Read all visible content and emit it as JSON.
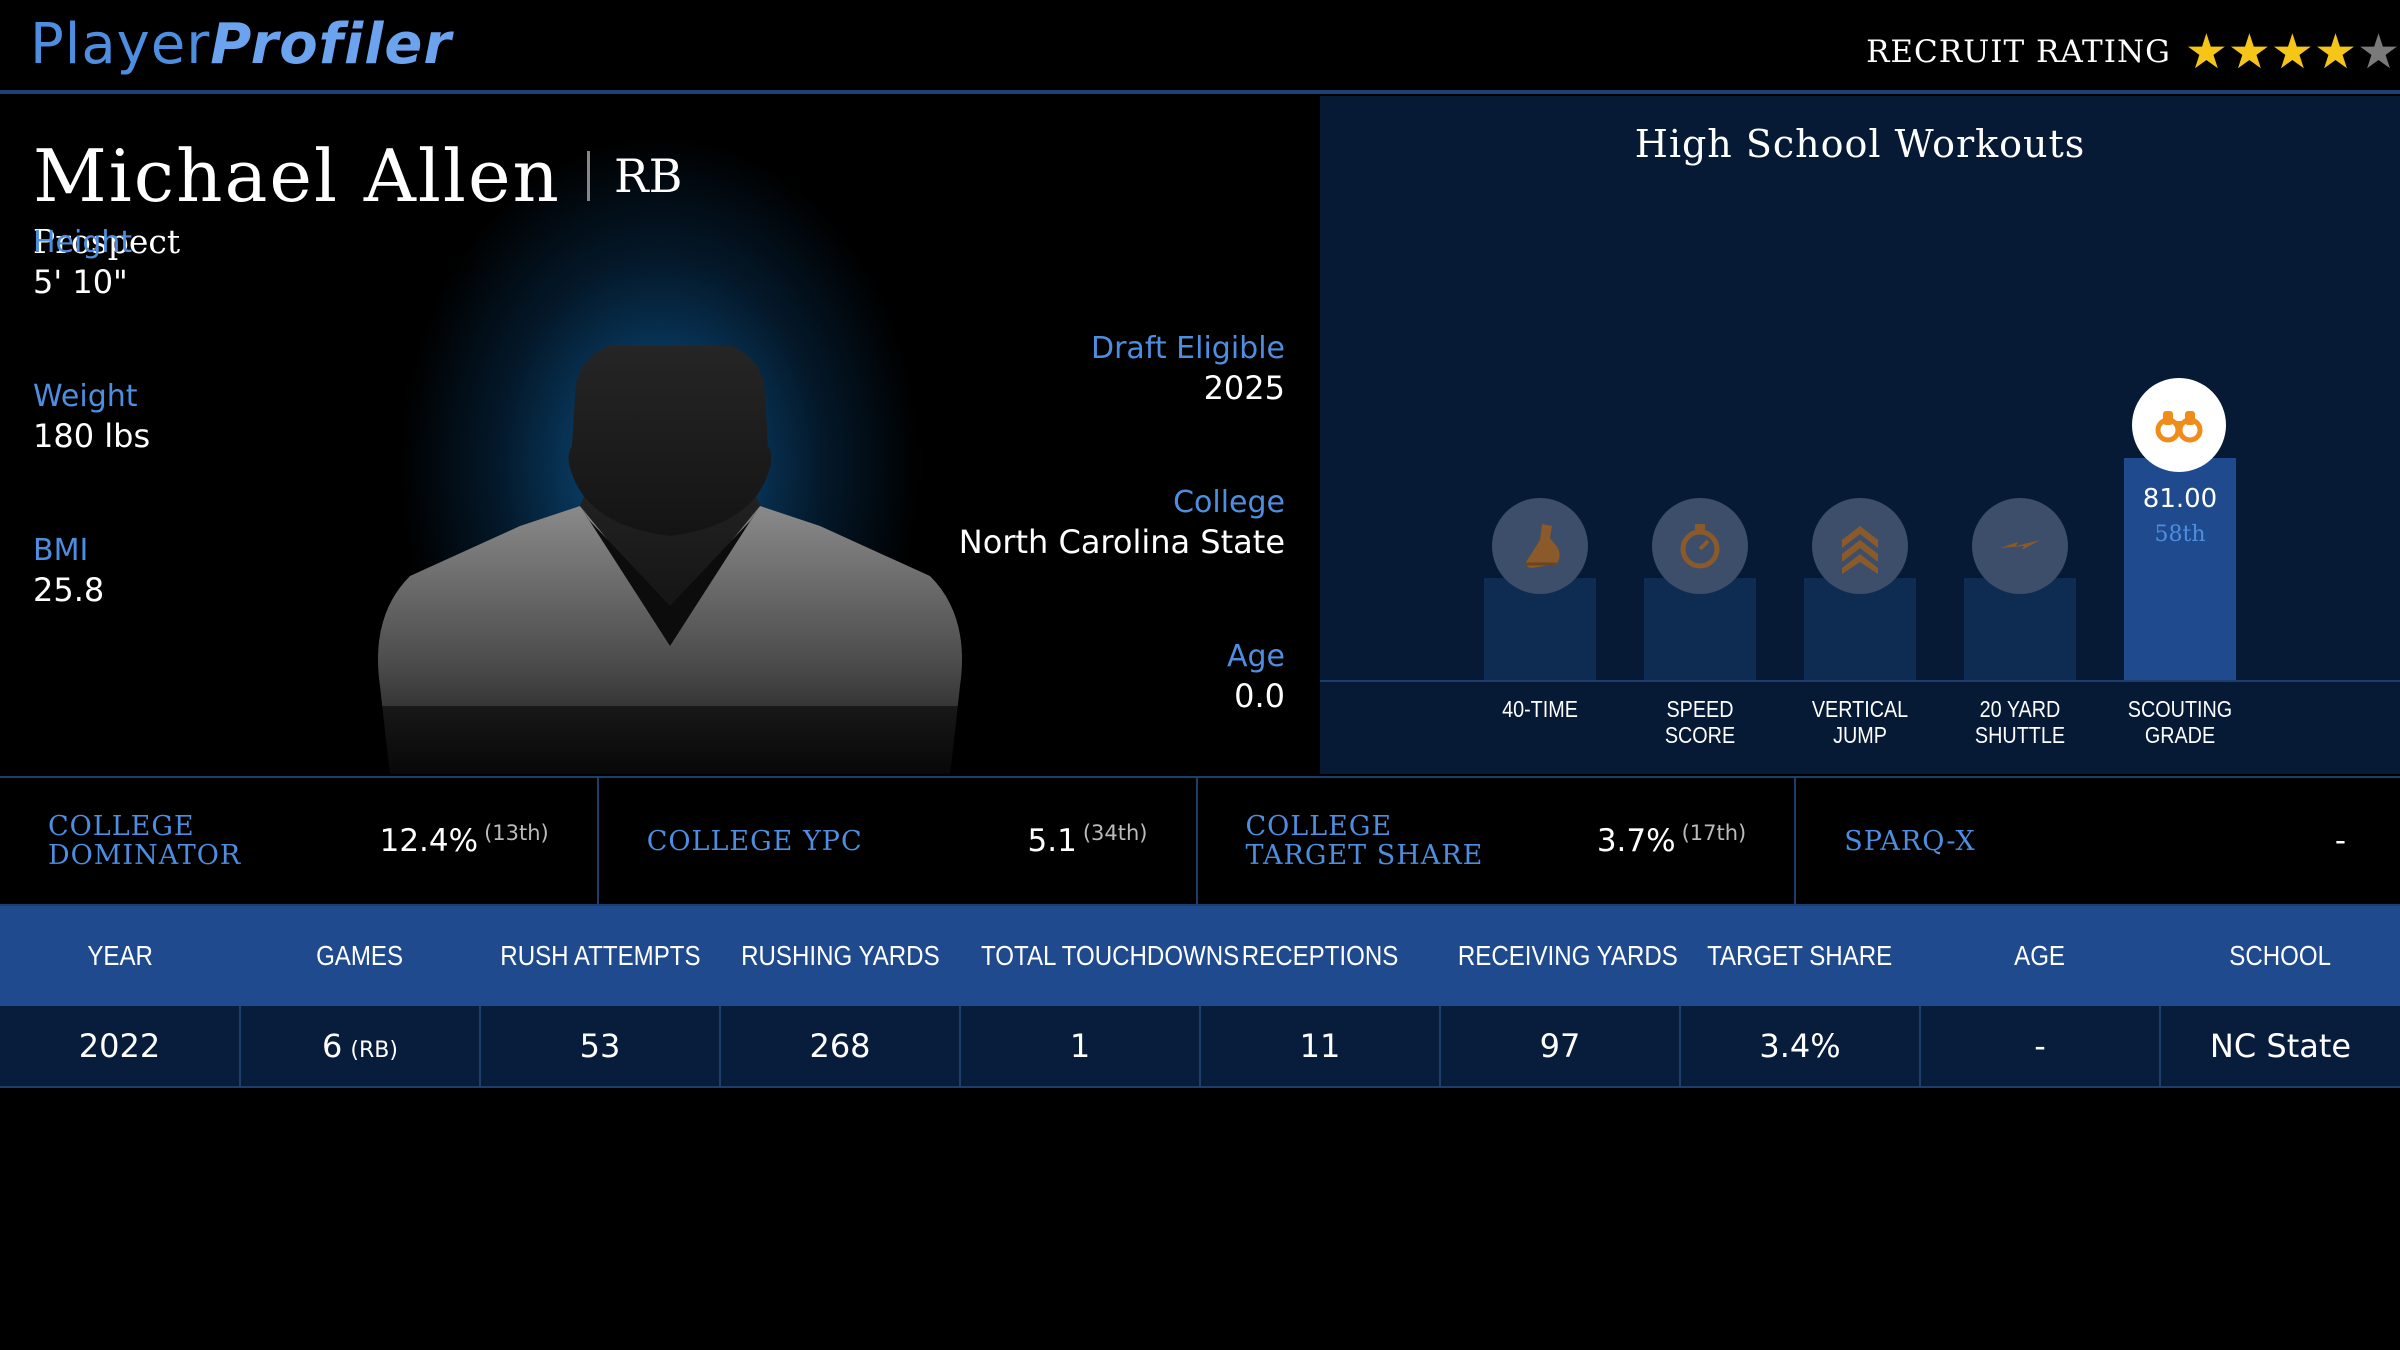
{
  "header": {
    "logo_part1": "Player",
    "logo_part2": "Profiler",
    "recruit_label": "RECRUIT RATING",
    "recruit_stars": 4,
    "recruit_stars_max": 5,
    "star_color": "#f5c518"
  },
  "player": {
    "name": "Michael Allen",
    "position": "RB",
    "status": "Prospect",
    "height_label": "Height",
    "height": "5' 10\"",
    "weight_label": "Weight",
    "weight": "180 lbs",
    "bmi_label": "BMI",
    "bmi": "25.8",
    "draft_label": "Draft Eligible",
    "draft": "2025",
    "college_label": "College",
    "college": "North Carolina State",
    "age_label": "Age",
    "age": "0.0"
  },
  "workouts": {
    "title": "High School Workouts",
    "items": [
      {
        "label1": "40-TIME",
        "label2": "",
        "icon": "shoe-icon"
      },
      {
        "label1": "SPEED",
        "label2": "SCORE",
        "icon": "stopwatch-icon"
      },
      {
        "label1": "VERTICAL",
        "label2": "JUMP",
        "icon": "chevrons-up-icon"
      },
      {
        "label1": "20 YARD",
        "label2": "SHUTTLE",
        "icon": "lightning-icon"
      },
      {
        "label1": "SCOUTING",
        "label2": "GRADE",
        "icon": "binoculars-icon",
        "score": "81.00",
        "percentile": "58th"
      }
    ],
    "accent_icon_color": "#f08c1a"
  },
  "metrics": [
    {
      "label": "COLLEGE DOMINATOR",
      "value": "12.4%",
      "rank": "(13th)"
    },
    {
      "label": "COLLEGE YPC",
      "value": "5.1",
      "rank": "(34th)"
    },
    {
      "label": "COLLEGE TARGET SHARE",
      "value": "3.7%",
      "rank": "(17th)"
    },
    {
      "label": "SPARQ-X",
      "value": "-",
      "rank": ""
    }
  ],
  "table": {
    "columns": [
      "YEAR",
      "GAMES",
      "RUSH ATTEMPTS",
      "RUSHING YARDS",
      "TOTAL TOUCHDOWNS",
      "RECEPTIONS",
      "RECEIVING YARDS",
      "TARGET SHARE",
      "AGE",
      "SCHOOL"
    ],
    "rows": [
      {
        "year": "2022",
        "games": "6",
        "games_pos": "(RB)",
        "rush_attempts": "53",
        "rushing_yards": "268",
        "total_touchdowns": "1",
        "receptions": "11",
        "receiving_yards": "97",
        "target_share": "3.4%",
        "age": "-",
        "school": "NC State"
      }
    ]
  },
  "colors": {
    "brand_blue": "#4d8ee0",
    "panel_navy": "#061a35",
    "table_header": "#1f4a8e"
  }
}
